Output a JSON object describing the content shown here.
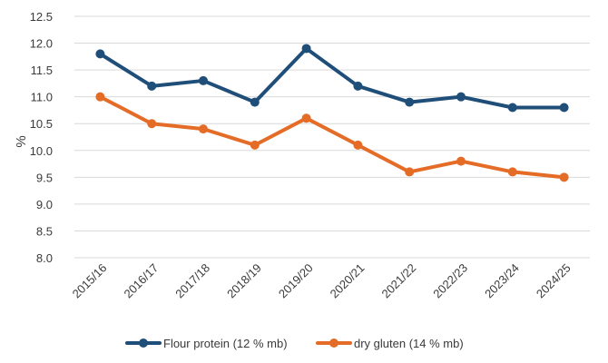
{
  "chart_data": {
    "type": "line",
    "title": "",
    "xlabel": "",
    "ylabel": "%",
    "ylim": [
      8.0,
      12.5
    ],
    "yticks": [
      "8.0",
      "8.5",
      "9.0",
      "9.5",
      "10.0",
      "10.5",
      "11.0",
      "11.5",
      "12.0",
      "12.5"
    ],
    "grid": true,
    "legend_position": "bottom",
    "categories": [
      "2015/16",
      "2016/17",
      "2017/18",
      "2018/19",
      "2019/20",
      "2020/21",
      "2021/22",
      "2022/23",
      "2023/24",
      "2024/25"
    ],
    "series": [
      {
        "name": "Flour protein (12 % mb)",
        "color": "#1f4e79",
        "values": [
          11.8,
          11.2,
          11.3,
          10.9,
          11.9,
          11.2,
          10.9,
          11.0,
          10.8,
          10.8
        ]
      },
      {
        "name": "dry gluten (14 % mb)",
        "color": "#e46c26",
        "values": [
          11.0,
          10.5,
          10.4,
          10.1,
          10.6,
          10.1,
          9.6,
          9.8,
          9.6,
          9.5
        ]
      }
    ]
  }
}
